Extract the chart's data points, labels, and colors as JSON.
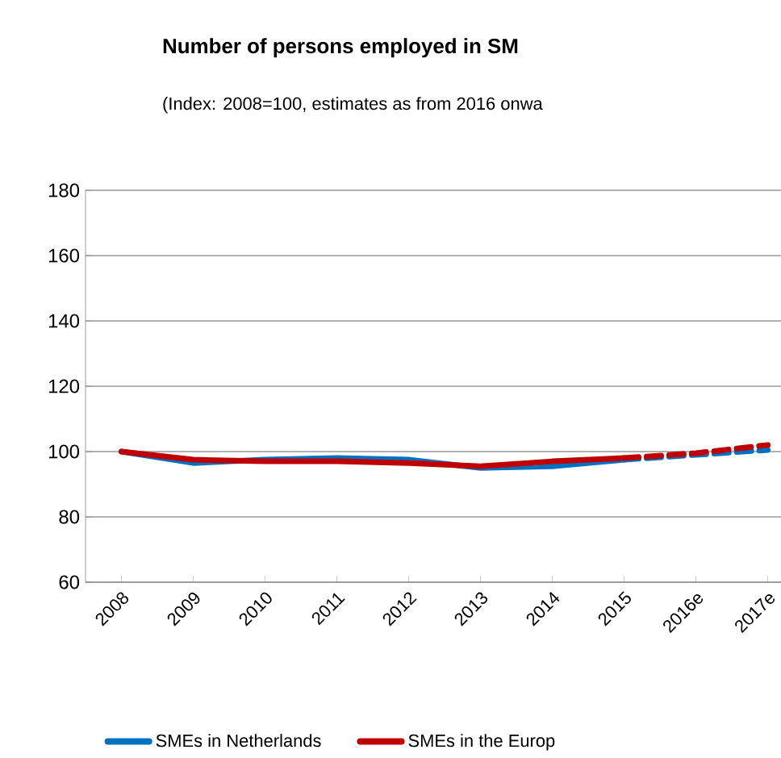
{
  "chart_data": {
    "type": "line",
    "title": "Number of persons employed in SM",
    "subtitle": "(Index: 2008=100, estimates as from 2016 onwa",
    "categories": [
      "2008",
      "2009",
      "2010",
      "2011",
      "2012",
      "2013",
      "2014",
      "2015",
      "2016e",
      "2017e"
    ],
    "series": [
      {
        "name": "SMEs in Netherlands",
        "color": "#0070c0",
        "line_style": "solid",
        "values": [
          100,
          96.5,
          97.5,
          98,
          97.5,
          95,
          95.5,
          97.5,
          null,
          null
        ]
      },
      {
        "name": "SMEs in the Europ",
        "color": "#c00000",
        "line_style": "solid",
        "values": [
          100,
          97.5,
          97,
          97,
          96.5,
          95.5,
          97,
          98,
          null,
          null
        ]
      },
      {
        "color": "#0070c0",
        "line_style": "dashed",
        "values": [
          null,
          null,
          null,
          null,
          null,
          null,
          null,
          97.5,
          99,
          100.5
        ]
      },
      {
        "color": "#c00000",
        "line_style": "dashed",
        "values": [
          null,
          null,
          null,
          null,
          null,
          null,
          null,
          98,
          99.5,
          102
        ]
      }
    ],
    "ylim": [
      60,
      180
    ],
    "yticks": [
      60,
      80,
      100,
      120,
      140,
      160,
      180
    ],
    "grid": "y",
    "legend": "bottom",
    "marker": "none"
  }
}
